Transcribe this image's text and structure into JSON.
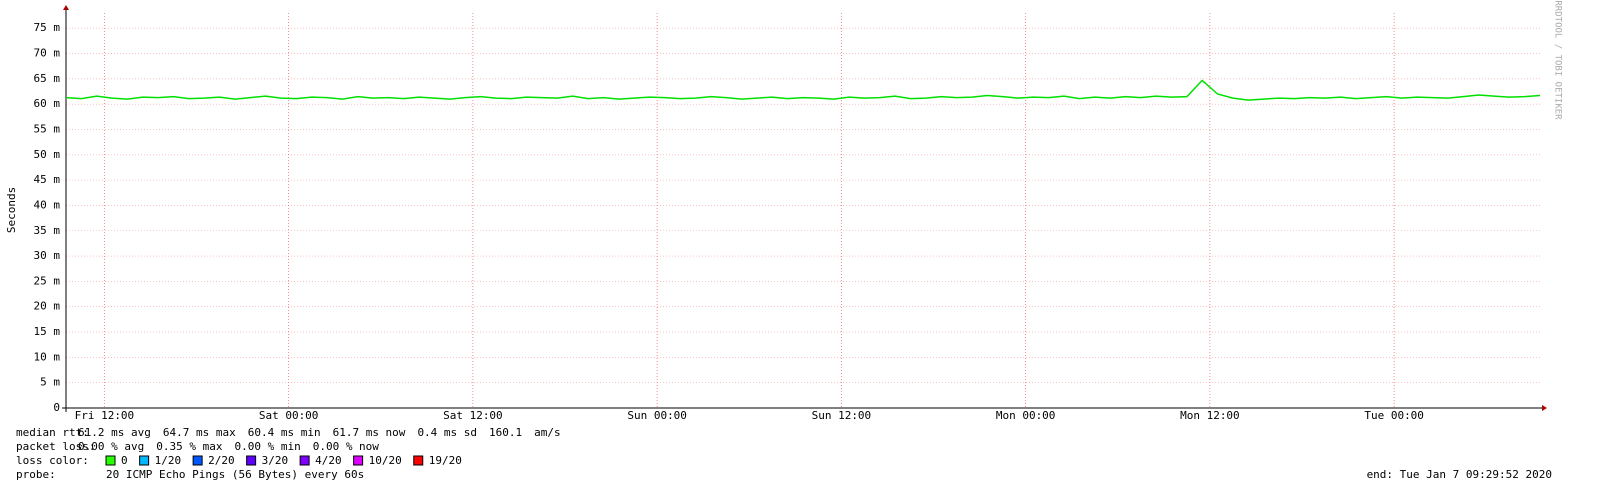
{
  "chart_data": {
    "type": "line",
    "y_label": "Seconds",
    "watermark": "RRDTOOL / TOBI OETIKER",
    "xlim": [
      9.5,
      105.5
    ],
    "xticks": [
      {
        "value": 12,
        "label": "Fri 12:00"
      },
      {
        "value": 24,
        "label": "Sat 00:00"
      },
      {
        "value": 36,
        "label": "Sat 12:00"
      },
      {
        "value": 48,
        "label": "Sun 00:00"
      },
      {
        "value": 60,
        "label": "Sun 12:00"
      },
      {
        "value": 72,
        "label": "Mon 00:00"
      },
      {
        "value": 84,
        "label": "Mon 12:00"
      },
      {
        "value": 96,
        "label": "Tue 00:00"
      }
    ],
    "ylim": [
      0,
      78
    ],
    "yticks": [
      0,
      {
        "value": 5,
        "label": "5 m"
      },
      {
        "value": 10,
        "label": "10 m"
      },
      {
        "value": 15,
        "label": "15 m"
      },
      {
        "value": 20,
        "label": "20 m"
      },
      {
        "value": 25,
        "label": "25 m"
      },
      {
        "value": 30,
        "label": "30 m"
      },
      {
        "value": 35,
        "label": "35 m"
      },
      {
        "value": 40,
        "label": "40 m"
      },
      {
        "value": 45,
        "label": "45 m"
      },
      {
        "value": 50,
        "label": "50 m"
      },
      {
        "value": 55,
        "label": "55 m"
      },
      {
        "value": 60,
        "label": "60 m"
      },
      {
        "value": 65,
        "label": "65 m"
      },
      {
        "value": 70,
        "label": "70 m"
      },
      {
        "value": 75,
        "label": "75 m"
      }
    ],
    "grid": true,
    "x": [
      9.5,
      10.5,
      11.5,
      12.5,
      13.5,
      14.5,
      15.5,
      16.5,
      17.5,
      18.5,
      19.5,
      20.5,
      21.5,
      22.5,
      23.5,
      24.5,
      25.5,
      26.5,
      27.5,
      28.5,
      29.5,
      30.5,
      31.5,
      32.5,
      33.5,
      34.5,
      35.5,
      36.5,
      37.5,
      38.5,
      39.5,
      40.5,
      41.5,
      42.5,
      43.5,
      44.5,
      45.5,
      46.5,
      47.5,
      48.5,
      49.5,
      50.5,
      51.5,
      52.5,
      53.5,
      54.5,
      55.5,
      56.5,
      57.5,
      58.5,
      59.5,
      60.5,
      61.5,
      62.5,
      63.5,
      64.5,
      65.5,
      66.5,
      67.5,
      68.5,
      69.5,
      70.5,
      71.5,
      72.5,
      73.5,
      74.5,
      75.5,
      76.5,
      77.5,
      78.5,
      79.5,
      80.5,
      81.5,
      82.5,
      83.5,
      84.5,
      85.5,
      86.5,
      87.5,
      88.5,
      89.5,
      90.5,
      91.5,
      92.5,
      93.5,
      94.5,
      95.5,
      96.5,
      97.5,
      98.5,
      99.5,
      100.5,
      101.5,
      102.5,
      103.5,
      104.5,
      105.5
    ],
    "series": [
      {
        "color": "#00e000",
        "values": [
          61.3,
          61.1,
          61.6,
          61.2,
          61.0,
          61.4,
          61.3,
          61.5,
          61.1,
          61.2,
          61.4,
          61.0,
          61.3,
          61.6,
          61.2,
          61.1,
          61.4,
          61.3,
          61.0,
          61.5,
          61.2,
          61.3,
          61.1,
          61.4,
          61.2,
          61.0,
          61.3,
          61.5,
          61.2,
          61.1,
          61.4,
          61.3,
          61.2,
          61.6,
          61.1,
          61.3,
          61.0,
          61.2,
          61.4,
          61.3,
          61.1,
          61.2,
          61.5,
          61.3,
          61.0,
          61.2,
          61.4,
          61.1,
          61.3,
          61.2,
          61.0,
          61.4,
          61.2,
          61.3,
          61.6,
          61.1,
          61.2,
          61.5,
          61.3,
          61.4,
          61.7,
          61.5,
          61.2,
          61.4,
          61.3,
          61.6,
          61.1,
          61.4,
          61.2,
          61.5,
          61.3,
          61.6,
          61.4,
          61.5,
          64.7,
          62.0,
          61.2,
          60.8,
          61.0,
          61.2,
          61.1,
          61.3,
          61.2,
          61.4,
          61.1,
          61.3,
          61.5,
          61.2,
          61.4,
          61.3,
          61.2,
          61.5,
          61.8,
          61.6,
          61.4,
          61.5,
          61.7
        ]
      }
    ],
    "stats": [
      [
        "median rtt:",
        "61.2 ms avg",
        "64.7 ms max",
        "60.4 ms min",
        "61.7 ms now",
        "0.4 ms sd",
        "160.1",
        "am/s"
      ],
      [
        "packet loss:",
        "0.00 % avg",
        "0.35 % max",
        "0.00 % min",
        "0.00 % now"
      ]
    ],
    "loss_title": "loss color:",
    "loss_colors": [
      {
        "label": "0",
        "color": "#26ff00"
      },
      {
        "label": "1/20",
        "color": "#00b8ff"
      },
      {
        "label": "2/20",
        "color": "#0059ff"
      },
      {
        "label": "3/20",
        "color": "#5e00ff"
      },
      {
        "label": "4/20",
        "color": "#7e00ff"
      },
      {
        "label": "10/20",
        "color": "#dd00ff"
      },
      {
        "label": "19/20",
        "color": "#ff0000"
      }
    ],
    "probe": [
      "probe:",
      "20 ICMP Echo Pings (56 Bytes) every 60s"
    ],
    "end": "end: Tue Jan  7 09:29:52 2020"
  }
}
